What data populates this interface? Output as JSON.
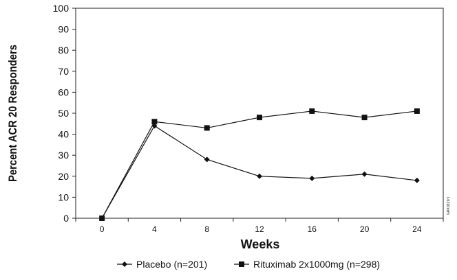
{
  "chart_data": {
    "type": "line",
    "title": "",
    "xlabel": "Weeks",
    "ylabel": "Percent ACR 20 Responders",
    "categories": [
      "0",
      "4",
      "8",
      "12",
      "16",
      "20",
      "24"
    ],
    "ylim": [
      0,
      100
    ],
    "yticks": [
      "0",
      "10",
      "20",
      "30",
      "40",
      "50",
      "60",
      "70",
      "80",
      "90",
      "100"
    ],
    "grid": false,
    "legend_position": "bottom",
    "series": [
      {
        "name": "Placebo (n=201)",
        "marker": "diamond",
        "values": [
          0,
          44,
          28,
          20,
          19,
          21,
          18
        ]
      },
      {
        "name": "Rituximab 2x1000mg (n=298)",
        "marker": "square",
        "values": [
          0,
          46,
          43,
          48,
          51,
          48,
          51
        ]
      }
    ],
    "colors": {
      "line": "#111111"
    },
    "watermark": "GRK0321r1"
  }
}
